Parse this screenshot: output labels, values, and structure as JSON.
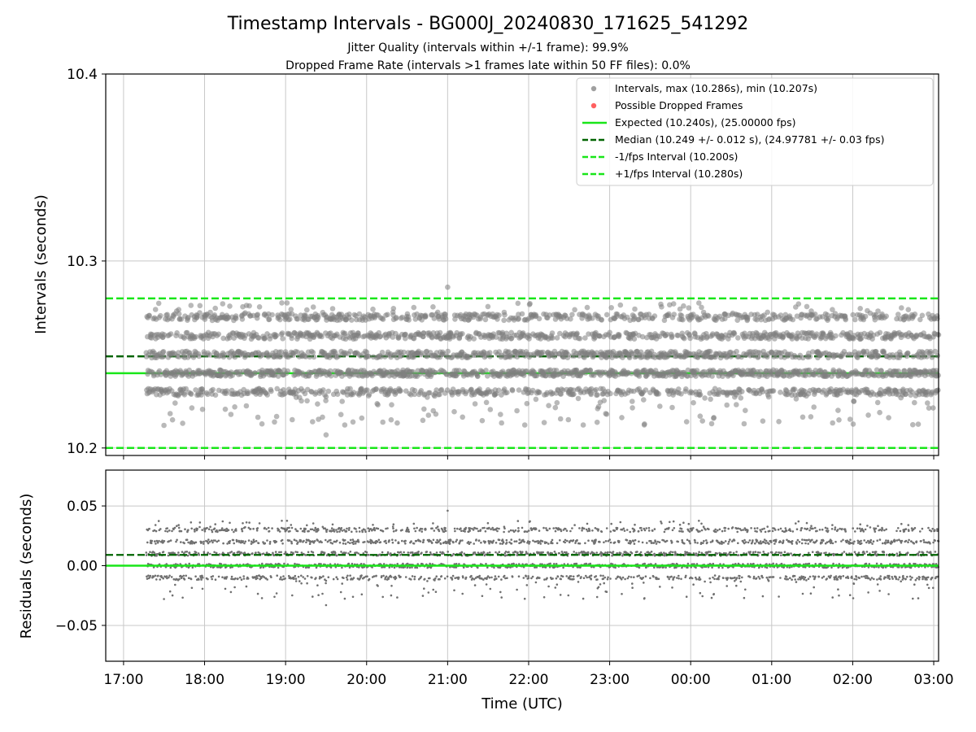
{
  "figure": {
    "title": "Timestamp Intervals - BG000J_20240830_171625_541292",
    "subtitle_1": "Jitter Quality (intervals within +/-1 frame): 99.9%",
    "subtitle_2": "Dropped Frame Rate (intervals >1 frames late within 50 FF files): 0.0%"
  },
  "colors": {
    "points": "#808080",
    "dropped": "#ff5050",
    "expected": "#19e619",
    "median": "#006400",
    "interval": "#19e619",
    "grid": "#c8c8c8"
  },
  "chart_data": [
    {
      "type": "scatter",
      "panel": "intervals",
      "ylabel": "Intervals (seconds)",
      "ylim": [
        10.196,
        10.4
      ],
      "yticks": [
        10.2,
        10.3,
        10.4
      ],
      "ytick_labels": [
        "10.2",
        "10.3",
        "10.4"
      ],
      "xlim_hours": [
        16.78,
        27.06
      ],
      "x_start_hour": 17.28,
      "x_end_hour": 27.06,
      "interval_count": 3350,
      "interval_levels": [
        10.23,
        10.24,
        10.25,
        10.26,
        10.27
      ],
      "max_interval": 10.286,
      "min_interval": 10.207,
      "legend_position": "top-right",
      "legend": [
        {
          "label": "Intervals, max (10.286s), min (10.207s)",
          "kind": "point",
          "color": "#a0a0a0"
        },
        {
          "label": "Possible Dropped Frames",
          "kind": "point",
          "color": "#ff6060"
        },
        {
          "label": "Expected (10.240s), (25.00000 fps)",
          "kind": "solid",
          "color": "#19e619"
        },
        {
          "label": "Median (10.249 +/- 0.012 s), (24.97781 +/- 0.03 fps)",
          "kind": "dashed",
          "color": "#006400"
        },
        {
          "label": "-1/fps Interval (10.200s)",
          "kind": "dashed",
          "color": "#19e619"
        },
        {
          "label": "+1/fps Interval (10.280s)",
          "kind": "dashed",
          "color": "#19e619"
        }
      ],
      "expected": 10.24,
      "median": 10.249,
      "lower_interval": 10.2,
      "upper_interval": 10.28
    },
    {
      "type": "scatter",
      "panel": "residuals",
      "ylabel": "Residuals (seconds)",
      "xlabel": "Time (UTC)",
      "ylim": [
        -0.08,
        0.08
      ],
      "yticks": [
        -0.05,
        0.0,
        0.05
      ],
      "ytick_labels": [
        "−0.05",
        "0.00",
        "0.05"
      ],
      "expected_residual": 0.0,
      "median_residual": 0.009
    }
  ],
  "x_axis": {
    "tick_hours": [
      17,
      18,
      19,
      20,
      21,
      22,
      23,
      24,
      25,
      26,
      27
    ],
    "tick_labels": [
      "17:00",
      "18:00",
      "19:00",
      "20:00",
      "21:00",
      "22:00",
      "23:00",
      "00:00",
      "01:00",
      "02:00",
      "03:00"
    ]
  }
}
